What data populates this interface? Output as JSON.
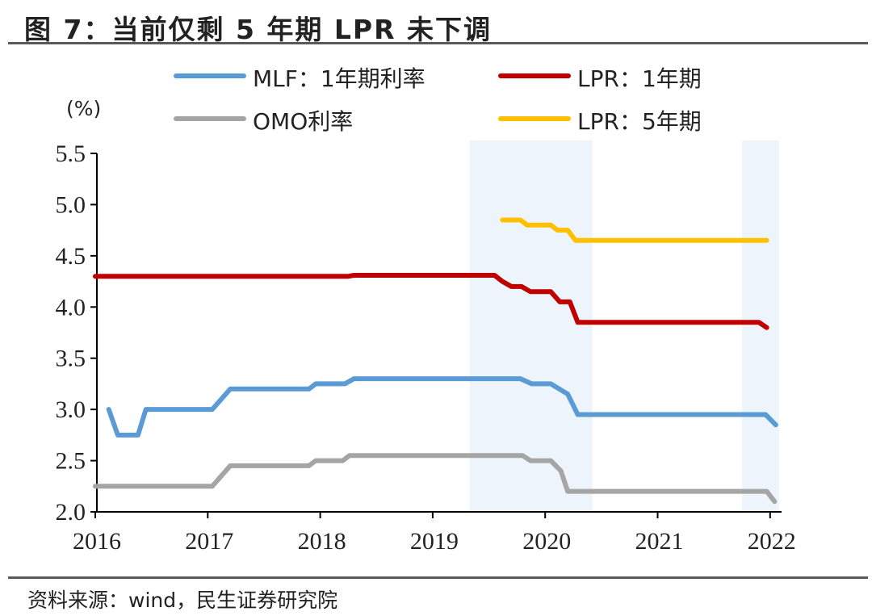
{
  "header": {
    "title": "图 7：当前仅剩 5 年期 LPR 未下调"
  },
  "footer": {
    "source": "资料来源：wind，民生证券研究院"
  },
  "chart_data": {
    "type": "line",
    "title": "图 7：当前仅剩 5 年期 LPR 未下调",
    "ylabel": "(%)",
    "xlabel": "",
    "xlim": [
      2016.0,
      2022.1
    ],
    "ylim": [
      2.0,
      5.5
    ],
    "x_ticks": [
      2016,
      2017,
      2018,
      2019,
      2020,
      2021,
      2022
    ],
    "y_ticks": [
      2.0,
      2.5,
      3.0,
      3.5,
      4.0,
      4.5,
      5.0,
      5.5
    ],
    "y_tick_labels": [
      "2.0",
      "2.5",
      "3.0",
      "3.5",
      "4.0",
      "4.5",
      "5.0",
      "5.5"
    ],
    "x_tick_labels": [
      "2016",
      "2017",
      "2018",
      "2019",
      "2020",
      "2021",
      "2022"
    ],
    "grid": false,
    "legend": "top",
    "shaded_regions": [
      {
        "x0": 2019.33,
        "x1": 2020.42
      },
      {
        "x0": 2021.75,
        "x1": 2022.08
      }
    ],
    "series": [
      {
        "name": "MLF：1年期利率",
        "color": "#5b9bd5",
        "points": [
          [
            2016.12,
            3.0
          ],
          [
            2016.2,
            2.75
          ],
          [
            2016.38,
            2.75
          ],
          [
            2016.45,
            3.0
          ],
          [
            2017.04,
            3.0
          ],
          [
            2017.2,
            3.2
          ],
          [
            2017.9,
            3.2
          ],
          [
            2017.96,
            3.25
          ],
          [
            2018.22,
            3.25
          ],
          [
            2018.3,
            3.3
          ],
          [
            2019.78,
            3.3
          ],
          [
            2019.88,
            3.25
          ],
          [
            2020.05,
            3.25
          ],
          [
            2020.2,
            3.15
          ],
          [
            2020.29,
            2.95
          ],
          [
            2021.96,
            2.95
          ],
          [
            2022.05,
            2.85
          ]
        ]
      },
      {
        "name": "LPR：1年期",
        "color": "#c00000",
        "points": [
          [
            2016.0,
            4.3
          ],
          [
            2018.25,
            4.3
          ],
          [
            2018.3,
            4.31
          ],
          [
            2019.55,
            4.31
          ],
          [
            2019.62,
            4.25
          ],
          [
            2019.7,
            4.2
          ],
          [
            2019.79,
            4.2
          ],
          [
            2019.87,
            4.15
          ],
          [
            2020.05,
            4.15
          ],
          [
            2020.13,
            4.05
          ],
          [
            2020.22,
            4.05
          ],
          [
            2020.29,
            3.85
          ],
          [
            2021.9,
            3.85
          ],
          [
            2021.97,
            3.8
          ]
        ]
      },
      {
        "name": "OMO利率",
        "color": "#a5a5a5",
        "points": [
          [
            2016.0,
            2.25
          ],
          [
            2017.04,
            2.25
          ],
          [
            2017.2,
            2.45
          ],
          [
            2017.9,
            2.45
          ],
          [
            2017.96,
            2.5
          ],
          [
            2018.2,
            2.5
          ],
          [
            2018.26,
            2.55
          ],
          [
            2019.8,
            2.55
          ],
          [
            2019.87,
            2.5
          ],
          [
            2020.05,
            2.5
          ],
          [
            2020.14,
            2.4
          ],
          [
            2020.2,
            2.2
          ],
          [
            2021.97,
            2.2
          ],
          [
            2022.04,
            2.1
          ]
        ]
      },
      {
        "name": "LPR：5年期",
        "color": "#ffc000",
        "points": [
          [
            2019.62,
            4.85
          ],
          [
            2019.78,
            4.85
          ],
          [
            2019.84,
            4.8
          ],
          [
            2020.05,
            4.8
          ],
          [
            2020.11,
            4.75
          ],
          [
            2020.2,
            4.75
          ],
          [
            2020.27,
            4.65
          ],
          [
            2021.97,
            4.65
          ]
        ]
      }
    ]
  }
}
